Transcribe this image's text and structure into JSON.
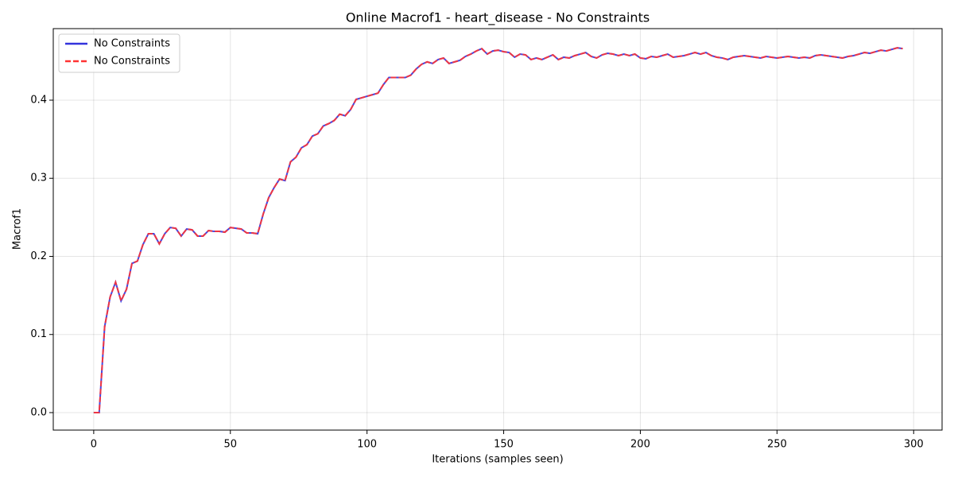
{
  "chart_data": {
    "type": "line",
    "title": "Online Macrof1 - heart_disease - No Constraints",
    "xlabel": "Iterations (samples seen)",
    "ylabel": "Macrof1",
    "x": [
      0,
      2,
      4,
      6,
      8,
      10,
      12,
      14,
      16,
      18,
      20,
      22,
      24,
      26,
      28,
      30,
      32,
      34,
      36,
      38,
      40,
      42,
      44,
      46,
      48,
      50,
      52,
      54,
      56,
      58,
      60,
      62,
      64,
      66,
      68,
      70,
      72,
      74,
      76,
      78,
      80,
      82,
      84,
      86,
      88,
      90,
      92,
      94,
      96,
      98,
      100,
      102,
      104,
      106,
      108,
      110,
      112,
      114,
      116,
      118,
      120,
      122,
      124,
      126,
      128,
      130,
      132,
      134,
      136,
      138,
      140,
      142,
      144,
      146,
      148,
      150,
      152,
      154,
      156,
      158,
      160,
      162,
      164,
      166,
      168,
      170,
      172,
      174,
      176,
      178,
      180,
      182,
      184,
      186,
      188,
      190,
      192,
      194,
      196,
      198,
      200,
      202,
      204,
      206,
      208,
      210,
      212,
      214,
      216,
      218,
      220,
      222,
      224,
      226,
      228,
      230,
      232,
      234,
      236,
      238,
      240,
      242,
      244,
      246,
      248,
      250,
      252,
      254,
      256,
      258,
      260,
      262,
      264,
      266,
      268,
      270,
      272,
      274,
      276,
      278,
      280,
      282,
      284,
      286,
      288,
      290,
      292,
      294,
      296
    ],
    "series": [
      {
        "name": "No Constraints",
        "color": "#3333dd",
        "dash": false,
        "values": [
          0,
          0,
          0.11,
          0.148,
          0.167,
          0.143,
          0.158,
          0.191,
          0.194,
          0.215,
          0.229,
          0.229,
          0.216,
          0.229,
          0.237,
          0.236,
          0.226,
          0.235,
          0.234,
          0.226,
          0.226,
          0.233,
          0.232,
          0.232,
          0.231,
          0.237,
          0.236,
          0.235,
          0.23,
          0.23,
          0.229,
          0.254,
          0.275,
          0.288,
          0.299,
          0.297,
          0.321,
          0.327,
          0.339,
          0.343,
          0.354,
          0.357,
          0.367,
          0.37,
          0.374,
          0.382,
          0.38,
          0.388,
          0.401,
          0.403,
          0.405,
          0.407,
          0.409,
          0.42,
          0.429,
          0.429,
          0.429,
          0.429,
          0.432,
          0.44,
          0.446,
          0.449,
          0.447,
          0.452,
          0.454,
          0.447,
          0.449,
          0.451,
          0.456,
          0.459,
          0.463,
          0.466,
          0.459,
          0.463,
          0.464,
          0.462,
          0.461,
          0.455,
          0.459,
          0.458,
          0.452,
          0.454,
          0.452,
          0.455,
          0.458,
          0.452,
          0.455,
          0.454,
          0.457,
          0.459,
          0.461,
          0.456,
          0.454,
          0.458,
          0.46,
          0.459,
          0.457,
          0.459,
          0.457,
          0.459,
          0.454,
          0.453,
          0.456,
          0.455,
          0.457,
          0.459,
          0.455,
          0.456,
          0.457,
          0.459,
          0.461,
          0.459,
          0.461,
          0.457,
          0.455,
          0.454,
          0.452,
          0.455,
          0.456,
          0.457,
          0.456,
          0.455,
          0.454,
          0.456,
          0.455,
          0.454,
          0.455,
          0.456,
          0.455,
          0.454,
          0.455,
          0.454,
          0.457,
          0.458,
          0.457,
          0.456,
          0.455,
          0.454,
          0.456,
          0.457,
          0.459,
          0.461,
          0.46,
          0.462,
          0.464,
          0.463,
          0.465,
          0.467,
          0.466
        ]
      },
      {
        "name": "No Constraints",
        "color": "#ff3333",
        "dash": true,
        "values": [
          0,
          0,
          0.11,
          0.148,
          0.167,
          0.143,
          0.158,
          0.191,
          0.194,
          0.215,
          0.229,
          0.229,
          0.216,
          0.229,
          0.237,
          0.236,
          0.226,
          0.235,
          0.234,
          0.226,
          0.226,
          0.233,
          0.232,
          0.232,
          0.231,
          0.237,
          0.236,
          0.235,
          0.23,
          0.23,
          0.229,
          0.254,
          0.275,
          0.288,
          0.299,
          0.297,
          0.321,
          0.327,
          0.339,
          0.343,
          0.354,
          0.357,
          0.367,
          0.37,
          0.374,
          0.382,
          0.38,
          0.388,
          0.401,
          0.403,
          0.405,
          0.407,
          0.409,
          0.42,
          0.429,
          0.429,
          0.429,
          0.429,
          0.432,
          0.44,
          0.446,
          0.449,
          0.447,
          0.452,
          0.454,
          0.447,
          0.449,
          0.451,
          0.456,
          0.459,
          0.463,
          0.466,
          0.459,
          0.463,
          0.464,
          0.462,
          0.461,
          0.455,
          0.459,
          0.458,
          0.452,
          0.454,
          0.452,
          0.455,
          0.458,
          0.452,
          0.455,
          0.454,
          0.457,
          0.459,
          0.461,
          0.456,
          0.454,
          0.458,
          0.46,
          0.459,
          0.457,
          0.459,
          0.457,
          0.459,
          0.454,
          0.453,
          0.456,
          0.455,
          0.457,
          0.459,
          0.455,
          0.456,
          0.457,
          0.459,
          0.461,
          0.459,
          0.461,
          0.457,
          0.455,
          0.454,
          0.452,
          0.455,
          0.456,
          0.457,
          0.456,
          0.455,
          0.454,
          0.456,
          0.455,
          0.454,
          0.455,
          0.456,
          0.455,
          0.454,
          0.455,
          0.454,
          0.457,
          0.458,
          0.457,
          0.456,
          0.455,
          0.454,
          0.456,
          0.457,
          0.459,
          0.461,
          0.46,
          0.462,
          0.464,
          0.463,
          0.465,
          0.467,
          0.466
        ]
      }
    ],
    "xlim": [
      -14.8,
      310.4
    ],
    "ylim": [
      -0.0224,
      0.4916
    ],
    "xticks": [
      0,
      50,
      100,
      150,
      200,
      250,
      300
    ],
    "yticks": [
      {
        "value": 0,
        "label": "0.0"
      },
      0.1,
      0.2,
      0.3,
      0.4
    ],
    "grid": true,
    "legend": "upper-left"
  }
}
